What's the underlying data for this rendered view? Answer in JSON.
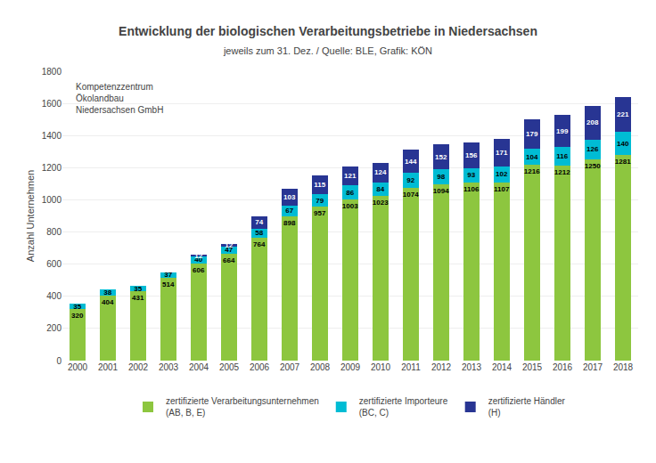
{
  "chart_data": {
    "type": "bar",
    "stacked": true,
    "title": "Entwicklung der biologischen Verarbeitungsbetriebe in Niedersachsen",
    "subtitle": "jeweils zum 31. Dez. / Quelle: BLE, Grafik: KÖN",
    "ylabel": "Anzahl Unternehmen",
    "categories": [
      "2000",
      "2001",
      "2002",
      "2003",
      "2004",
      "2005",
      "2006",
      "2007",
      "2008",
      "2009",
      "2010",
      "2011",
      "2012",
      "2013",
      "2014",
      "2015",
      "2016",
      "2017",
      "2018"
    ],
    "series": [
      {
        "name": "zertifizierte Verarbeitungsunternehmen\n(AB, B, E)",
        "color": "#8dc63f",
        "values": [
          320,
          404,
          431,
          514,
          606,
          664,
          764,
          898,
          957,
          1003,
          1023,
          1074,
          1094,
          1106,
          1107,
          1216,
          1212,
          1250,
          1281
        ]
      },
      {
        "name": "zertifizierte Importeure\n(BC, C)",
        "color": "#00bcd4",
        "values": [
          35,
          38,
          35,
          37,
          40,
          47,
          58,
          67,
          79,
          86,
          84,
          92,
          98,
          93,
          102,
          104,
          116,
          126,
          140
        ]
      },
      {
        "name": "zertifizierte Händler\n(H)",
        "color": "#283593",
        "values": [
          0,
          0,
          0,
          0,
          12,
          12,
          74,
          103,
          115,
          121,
          124,
          144,
          152,
          156,
          171,
          179,
          199,
          208,
          221
        ]
      }
    ],
    "ylim": [
      0,
      1800
    ],
    "yticks": [
      0,
      200,
      400,
      600,
      800,
      1000,
      1200,
      1400,
      1600,
      1800
    ],
    "grid": true,
    "legend": "bottom",
    "data_labels": true,
    "annotations": [
      "Kompetenzzentrum",
      "Ökolandbau",
      "Niedersachsen GmbH"
    ]
  }
}
